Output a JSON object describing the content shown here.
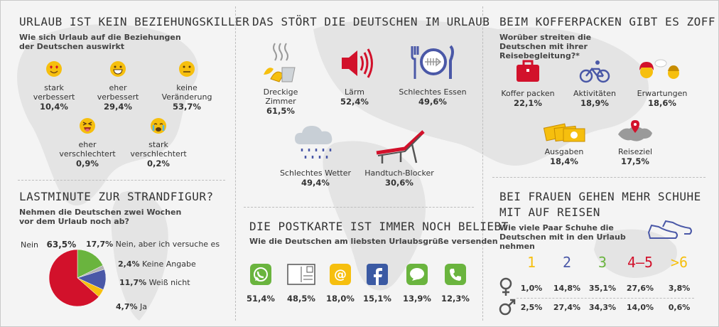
{
  "colors": {
    "red": "#d2112b",
    "green": "#6ab43e",
    "blue": "#4a58a7",
    "yellow": "#f6bf0e",
    "gray": "#b4b4b4"
  },
  "s1": {
    "title": "URLAUB IST KEIN BEZIEHUNGSKILLER",
    "subtitle": "Wie sich Urlaub auf die Beziehungen der Deutschen auswirkt",
    "items": [
      {
        "label1": "stark",
        "label2": "verbessert",
        "value": "10,4%",
        "icon": "heart-eyes-emoji-icon"
      },
      {
        "label1": "eher",
        "label2": "verbessert",
        "value": "29,4%",
        "icon": "grinning-emoji-icon"
      },
      {
        "label1": "keine",
        "label2": "Veränderung",
        "value": "53,7%",
        "icon": "neutral-emoji-icon"
      },
      {
        "label1": "eher",
        "label2": "verschlechtert",
        "value": "0,9%",
        "icon": "squinting-tongue-emoji-icon"
      },
      {
        "label1": "stark",
        "label2": "verschlechtert",
        "value": "0,2%",
        "icon": "crying-emoji-icon"
      }
    ]
  },
  "s2": {
    "title": "LASTMINUTE ZUR STRANDFIGUR?",
    "subtitle": "Nehmen die Deutschen zwei Wochen vor dem Urlaub noch ab?",
    "pie": [
      {
        "label": "Nein",
        "value": "63,5%",
        "share": 63.5,
        "color": "#d2112b"
      },
      {
        "label": "Nein, aber ich versuche es",
        "value": "17,7%",
        "share": 17.7,
        "color": "#6ab43e"
      },
      {
        "label": "Keine Angabe",
        "value": "2,4%",
        "share": 2.4,
        "color": "#b4b4b4"
      },
      {
        "label": "Weiß nicht",
        "value": "11,7%",
        "share": 11.7,
        "color": "#4a58a7"
      },
      {
        "label": "Ja",
        "value": "4,7%",
        "share": 4.7,
        "color": "#f6bf0e"
      }
    ]
  },
  "s3": {
    "title": "DAS STÖRT DIE DEUTSCHEN IM URLAUB",
    "items": [
      {
        "label": "Dreckige Zimmer",
        "value": "61,5%",
        "icon": "dirty-trash-icon"
      },
      {
        "label": "Lärm",
        "value": "52,4%",
        "icon": "speaker-icon"
      },
      {
        "label": "Schlechtes Essen",
        "value": "49,6%",
        "icon": "fishbone-plate-icon"
      },
      {
        "label": "Schlechtes Wetter",
        "value": "49,4%",
        "icon": "rain-cloud-icon"
      },
      {
        "label": "Handtuch-Blocker",
        "value": "30,6%",
        "icon": "sunlounger-icon"
      }
    ]
  },
  "s4": {
    "title": "DIE POSTKARTE IST IMMER NOCH BELIEBT",
    "subtitle": "Wie die Deutschen am liebsten Urlaubsgrüße versenden",
    "items": [
      {
        "value": "51,4%",
        "icon": "whatsapp-icon"
      },
      {
        "value": "48,5%",
        "icon": "postcard-icon"
      },
      {
        "value": "18,0%",
        "icon": "email-at-icon"
      },
      {
        "value": "15,1%",
        "icon": "facebook-icon"
      },
      {
        "value": "13,9%",
        "icon": "sms-bubble-icon"
      },
      {
        "value": "12,3%",
        "icon": "phone-icon"
      }
    ]
  },
  "s5": {
    "title": "BEIM KOFFERPACKEN GIBT ES ZOFF",
    "subtitle": "Worüber streiten die Deutschen mit ihrer Reisebegleitung?*",
    "items": [
      {
        "label": "Koffer packen",
        "value": "22,1%",
        "icon": "suitcase-icon"
      },
      {
        "label": "Aktivitäten",
        "value": "18,9%",
        "icon": "cyclist-icon"
      },
      {
        "label": "Erwartungen",
        "value": "18,6%",
        "icon": "couple-thought-icon"
      },
      {
        "label": "Ausgaben",
        "value": "18,4%",
        "icon": "euro-bills-icon"
      },
      {
        "label": "Reiseziel",
        "value": "17,5%",
        "icon": "map-pin-icon"
      }
    ]
  },
  "s6": {
    "title1": "BEI FRAUEN GEHEN MEHR SCHUHE",
    "title2": "MIT AUF REISEN",
    "subtitle": "Wie viele Paar Schuhe die Deutschen mit in den Urlaub nehmen",
    "cols": [
      "1",
      "2",
      "3",
      "4–5",
      ">6"
    ],
    "col_colors": [
      "#f6bf0e",
      "#4a58a7",
      "#6ab43e",
      "#d2112b",
      "#f6bf0e"
    ],
    "female": [
      "1,0%",
      "14,8%",
      "35,1%",
      "27,6%",
      "3,8%"
    ],
    "male": [
      "2,5%",
      "27,4%",
      "34,3%",
      "14,0%",
      "0,6%"
    ]
  }
}
